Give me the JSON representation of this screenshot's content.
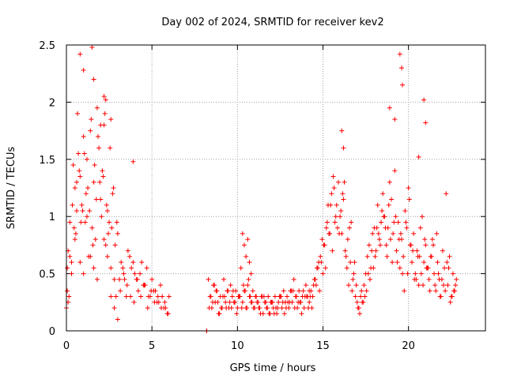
{
  "chart_data": {
    "type": "scatter",
    "title": "Day 002 of 2024, SRMTID for receiver kev2",
    "xlabel": "GPS time / hours",
    "ylabel": "SRMTID / TECUs",
    "xlim": [
      0,
      24.5
    ],
    "ylim": [
      0,
      2.5
    ],
    "x_ticks": [
      0,
      5,
      10,
      15,
      20
    ],
    "x_tick_labels": [
      "0",
      "5",
      "10",
      "15",
      "20"
    ],
    "y_ticks": [
      0,
      0.5,
      1,
      1.5,
      2,
      2.5
    ],
    "y_tick_labels": [
      "0",
      "0.5",
      "1",
      "1.5",
      "2",
      "2.5"
    ],
    "grid": true,
    "marker": "plus",
    "color": "#ff0000",
    "series": [
      {
        "name": "SRMTID",
        "x": [
          0.0,
          0.05,
          0.1,
          0.15,
          0.2,
          0.3,
          0.4,
          0.5,
          0.55,
          0.6,
          0.7,
          0.8,
          0.9,
          1.0,
          1.1,
          1.15,
          1.2,
          1.3,
          1.4,
          1.5,
          1.6,
          1.7,
          1.8,
          1.9,
          2.0,
          2.1,
          2.2,
          2.3,
          2.4,
          2.5,
          2.6,
          2.7,
          2.8,
          2.9,
          3.0,
          3.2,
          3.4,
          3.6,
          3.8,
          4.0,
          4.2,
          4.4,
          4.6,
          4.8,
          5.0,
          5.2,
          5.4,
          5.6,
          5.8,
          6.0,
          0.05,
          0.2,
          0.35,
          0.5,
          0.65,
          0.75,
          0.85,
          0.95,
          1.05,
          1.25,
          1.35,
          1.45,
          1.55,
          1.65,
          1.75,
          1.85,
          1.95,
          2.05,
          2.15,
          2.25,
          2.35,
          2.45,
          2.55,
          2.65,
          2.75,
          2.85,
          2.95,
          3.1,
          3.3,
          3.5,
          3.7,
          3.9,
          4.1,
          4.3,
          4.5,
          4.7,
          4.9,
          5.1,
          5.3,
          5.5,
          5.7,
          5.9,
          0.1,
          0.3,
          0.45,
          0.6,
          0.8,
          1.0,
          1.2,
          1.4,
          1.6,
          1.8,
          2.0,
          2.2,
          2.4,
          2.6,
          2.8,
          3.0,
          3.15,
          3.35,
          3.55,
          3.75,
          3.95,
          4.15,
          4.35,
          4.55,
          4.75,
          4.95,
          5.15,
          5.35,
          5.55,
          5.75,
          5.95,
          8.2,
          8.2,
          8.3,
          8.4,
          8.5,
          8.6,
          8.7,
          8.8,
          8.9,
          9.0,
          9.1,
          9.2,
          9.3,
          9.4,
          9.5,
          9.6,
          9.7,
          9.8,
          9.9,
          10.0,
          10.1,
          10.2,
          10.3,
          10.4,
          10.5,
          10.6,
          10.7,
          10.8,
          10.9,
          11.0,
          11.1,
          11.2,
          11.3,
          11.4,
          11.5,
          11.6,
          11.7,
          11.8,
          11.9,
          12.0,
          12.1,
          12.2,
          12.3,
          12.4,
          12.5,
          12.6,
          12.7,
          12.8,
          12.9,
          13.0,
          13.1,
          13.2,
          13.3,
          13.4,
          13.5,
          13.6,
          13.7,
          13.8,
          13.9,
          14.0,
          14.1,
          14.2,
          8.35,
          8.55,
          8.75,
          8.95,
          9.15,
          9.35,
          9.55,
          9.75,
          9.95,
          10.15,
          10.35,
          10.55,
          10.75,
          10.95,
          11.15,
          11.35,
          11.55,
          11.75,
          11.95,
          12.15,
          12.35,
          12.55,
          12.75,
          12.95,
          13.15,
          13.35,
          13.55,
          13.75,
          13.95,
          14.15,
          8.45,
          8.65,
          8.85,
          9.05,
          9.25,
          9.45,
          9.65,
          9.85,
          10.05,
          10.25,
          10.45,
          10.65,
          10.85,
          11.05,
          11.25,
          11.45,
          11.65,
          11.85,
          12.05,
          12.25,
          12.45,
          12.65,
          12.85,
          13.05,
          13.25,
          13.45,
          13.65,
          13.85,
          14.05,
          10.3,
          10.4,
          10.5,
          10.6,
          10.7,
          10.8,
          14.2,
          14.3,
          14.4,
          14.5,
          14.6,
          14.7,
          14.8,
          14.9,
          15.0,
          15.1,
          15.2,
          15.3,
          15.4,
          15.5,
          15.6,
          15.7,
          15.8,
          15.9,
          16.0,
          16.1,
          16.2,
          16.3,
          16.4,
          16.5,
          16.6,
          16.7,
          16.8,
          16.9,
          17.0,
          17.1,
          17.2,
          17.3,
          17.4,
          17.5,
          17.6,
          17.7,
          17.8,
          17.9,
          18.0,
          18.1,
          18.2,
          18.3,
          18.4,
          18.5,
          18.6,
          18.7,
          18.8,
          18.9,
          19.0,
          19.1,
          19.2,
          19.3,
          19.4,
          19.5,
          19.6,
          19.7,
          19.8,
          19.9,
          20.0,
          20.1,
          20.2,
          20.3,
          20.4,
          20.5,
          20.6,
          20.7,
          20.8,
          20.9,
          21.0,
          21.1,
          21.2,
          21.3,
          21.4,
          21.5,
          21.6,
          21.7,
          21.8,
          21.9,
          22.0,
          22.1,
          22.2,
          22.3,
          22.4,
          22.5,
          22.6,
          22.7,
          22.8,
          14.25,
          14.45,
          14.65,
          14.85,
          15.05,
          15.25,
          15.45,
          15.65,
          15.85,
          16.05,
          16.25,
          16.45,
          16.65,
          16.85,
          17.05,
          17.25,
          17.45,
          17.65,
          17.85,
          18.05,
          18.25,
          18.45,
          18.65,
          18.85,
          19.05,
          19.25,
          19.45,
          19.65,
          19.85,
          20.05,
          20.25,
          20.45,
          20.65,
          20.85,
          21.05,
          21.25,
          21.45,
          21.65,
          21.85,
          22.05,
          22.25,
          22.45,
          22.65,
          14.35,
          14.55,
          14.75,
          14.95,
          15.15,
          15.35,
          15.55,
          15.75,
          15.95,
          16.15,
          16.35,
          16.55,
          16.75,
          16.95,
          17.15,
          17.35,
          17.55,
          17.75,
          17.95,
          18.15,
          18.35,
          18.55,
          18.75,
          18.95,
          19.15,
          19.35,
          19.55,
          19.75,
          19.95,
          20.15,
          20.35,
          20.55,
          20.75,
          20.95,
          21.15,
          21.35,
          21.55,
          21.75,
          21.95,
          22.15,
          22.35,
          22.55,
          22.75,
          0.8,
          1.0,
          1.5,
          1.6,
          2.2,
          2.3,
          2.6,
          16.1,
          16.2,
          18.9,
          19.2,
          19.5,
          19.6,
          19.65,
          20.9,
          21.0,
          20.6,
          3.9
        ],
        "y": [
          0.2,
          0.55,
          0.7,
          0.3,
          0.95,
          0.6,
          1.45,
          1.25,
          0.85,
          1.05,
          1.55,
          1.35,
          1.1,
          1.7,
          0.95,
          1.2,
          1.5,
          0.65,
          1.75,
          0.9,
          1.3,
          0.8,
          1.95,
          1.6,
          1.15,
          1.4,
          1.8,
          0.75,
          1.05,
          0.95,
          0.55,
          1.2,
          0.45,
          0.3,
          0.85,
          0.6,
          0.45,
          0.7,
          0.55,
          0.5,
          0.35,
          0.6,
          0.4,
          0.3,
          0.45,
          0.35,
          0.25,
          0.3,
          0.2,
          0.3,
          0.35,
          0.65,
          1.1,
          0.8,
          1.9,
          1.4,
          0.95,
          1.05,
          1.55,
          1.25,
          1.05,
          1.85,
          0.75,
          1.45,
          1.15,
          1.7,
          1.3,
          1.0,
          1.35,
          1.9,
          1.1,
          0.85,
          1.6,
          0.9,
          1.25,
          0.75,
          0.95,
          0.45,
          0.55,
          0.3,
          0.65,
          0.6,
          0.45,
          0.5,
          0.4,
          0.55,
          0.3,
          0.35,
          0.25,
          0.4,
          0.2,
          0.15,
          0.25,
          0.5,
          0.9,
          1.3,
          0.6,
          0.5,
          1.0,
          0.65,
          0.55,
          0.45,
          1.8,
          0.8,
          0.65,
          0.3,
          0.2,
          0.1,
          0.35,
          0.5,
          0.4,
          0.3,
          0.25,
          0.45,
          0.3,
          0.4,
          0.2,
          0.35,
          0.25,
          0.3,
          0.2,
          0.25,
          0.15,
          0.0,
          0.0,
          0.45,
          0.3,
          0.2,
          0.4,
          0.25,
          0.35,
          0.15,
          0.3,
          0.2,
          0.45,
          0.25,
          0.35,
          0.2,
          0.4,
          0.3,
          0.25,
          0.35,
          0.2,
          0.3,
          0.55,
          0.25,
          0.35,
          0.2,
          0.4,
          0.3,
          0.25,
          0.35,
          0.2,
          0.3,
          0.25,
          0.2,
          0.3,
          0.15,
          0.25,
          0.2,
          0.3,
          0.15,
          0.25,
          0.2,
          0.3,
          0.15,
          0.25,
          0.3,
          0.2,
          0.35,
          0.25,
          0.3,
          0.2,
          0.35,
          0.25,
          0.45,
          0.3,
          0.2,
          0.35,
          0.25,
          0.3,
          0.2,
          0.4,
          0.3,
          0.35,
          0.2,
          0.25,
          0.35,
          0.15,
          0.3,
          0.2,
          0.25,
          0.35,
          0.15,
          0.3,
          0.4,
          0.2,
          0.3,
          0.2,
          0.25,
          0.15,
          0.3,
          0.2,
          0.25,
          0.15,
          0.2,
          0.3,
          0.15,
          0.25,
          0.35,
          0.2,
          0.25,
          0.15,
          0.3,
          0.2,
          0.3,
          0.4,
          0.25,
          0.2,
          0.3,
          0.35,
          0.2,
          0.25,
          0.3,
          0.2,
          0.35,
          0.45,
          0.25,
          0.3,
          0.2,
          0.3,
          0.25,
          0.15,
          0.25,
          0.2,
          0.3,
          0.25,
          0.2,
          0.25,
          0.35,
          0.3,
          0.25,
          0.35,
          0.3,
          0.85,
          0.75,
          0.65,
          0.8,
          0.6,
          0.5,
          0.25,
          0.35,
          0.3,
          0.45,
          0.4,
          0.55,
          0.35,
          0.6,
          0.5,
          0.75,
          0.9,
          1.1,
          0.85,
          1.2,
          1.35,
          0.95,
          1.1,
          1.3,
          1.0,
          0.85,
          1.15,
          0.7,
          0.55,
          0.4,
          0.6,
          0.35,
          0.5,
          0.3,
          0.25,
          0.2,
          0.3,
          0.25,
          0.4,
          0.5,
          0.65,
          0.75,
          0.55,
          0.85,
          0.9,
          0.7,
          1.1,
          0.8,
          0.95,
          1.2,
          1.0,
          0.75,
          0.9,
          1.3,
          1.15,
          0.85,
          1.4,
          0.7,
          0.95,
          0.55,
          0.8,
          0.65,
          1.05,
          0.9,
          1.25,
          0.75,
          0.6,
          0.85,
          0.5,
          0.7,
          0.4,
          0.9,
          1.0,
          0.6,
          0.75,
          0.55,
          0.45,
          0.65,
          0.8,
          0.5,
          0.35,
          0.6,
          0.45,
          0.3,
          0.7,
          0.55,
          1.2,
          0.4,
          0.65,
          0.3,
          0.5,
          0.35,
          0.45,
          0.3,
          0.4,
          0.55,
          0.65,
          0.75,
          0.95,
          1.1,
          1.25,
          0.9,
          1.05,
          1.3,
          0.8,
          0.95,
          0.6,
          0.2,
          0.35,
          0.3,
          0.5,
          0.7,
          0.65,
          0.85,
          1.05,
          0.9,
          1.1,
          0.6,
          1.0,
          0.8,
          0.5,
          0.95,
          1.15,
          0.7,
          0.45,
          0.65,
          0.4,
          0.55,
          0.35,
          0.75,
          0.85,
          0.3,
          0.4,
          0.6,
          0.25,
          0.35,
          0.2,
          0.45,
          0.6,
          0.8,
          0.55,
          0.85,
          0.7,
          1.0,
          0.85,
          1.2,
          0.65,
          0.9,
          0.45,
          0.4,
          0.15,
          0.25,
          0.35,
          0.45,
          0.55,
          0.9,
          0.75,
          1.0,
          0.65,
          0.8,
          0.95,
          0.6,
          0.85,
          0.35,
          0.5,
          0.75,
          0.45,
          0.65,
          0.5,
          0.8,
          0.55,
          0.65,
          0.4,
          0.5,
          0.45,
          0.35,
          0.55,
          0.3,
          0.4,
          2.42,
          2.28,
          2.48,
          2.2,
          2.05,
          2.02,
          1.85,
          1.75,
          1.6,
          1.95,
          1.85,
          2.42,
          2.3,
          2.15,
          2.02,
          1.82,
          1.52,
          1.48
        ]
      }
    ]
  }
}
